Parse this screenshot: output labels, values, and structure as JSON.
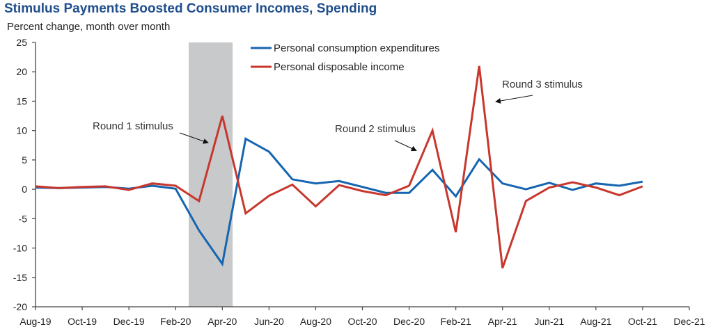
{
  "chart_data": {
    "type": "line",
    "title": "Stimulus Payments Boosted Consumer Incomes, Spending",
    "ylabel": "Percent change, month over month",
    "xlabel": "",
    "ylim": [
      -20,
      25
    ],
    "yticks": [
      25,
      20,
      15,
      10,
      5,
      0,
      -5,
      -10,
      -15,
      -20
    ],
    "xtick_labels": [
      "Aug-19",
      "Oct-19",
      "Dec-19",
      "Feb-20",
      "Apr-20",
      "Jun-20",
      "Aug-20",
      "Oct-20",
      "Dec-20",
      "Feb-21",
      "Apr-21",
      "Jun-21",
      "Aug-21",
      "Oct-21",
      "Dec-21"
    ],
    "x": [
      "Aug-19",
      "Sep-19",
      "Oct-19",
      "Nov-19",
      "Dec-19",
      "Jan-20",
      "Feb-20",
      "Mar-20",
      "Apr-20",
      "May-20",
      "Jun-20",
      "Jul-20",
      "Aug-20",
      "Sep-20",
      "Oct-20",
      "Nov-20",
      "Dec-20",
      "Jan-21",
      "Feb-21",
      "Mar-21",
      "Apr-21",
      "May-21",
      "Jun-21",
      "Jul-21",
      "Aug-21",
      "Sep-21",
      "Oct-21"
    ],
    "series": [
      {
        "name": "Personal consumption expenditures",
        "color": "#1565b0",
        "values": [
          0.3,
          0.2,
          0.3,
          0.4,
          0.1,
          0.6,
          0.1,
          -7.0,
          -12.7,
          8.6,
          6.4,
          1.7,
          1.0,
          1.4,
          0.4,
          -0.6,
          -0.6,
          3.3,
          -1.2,
          5.1,
          1.0,
          0.0,
          1.1,
          -0.1,
          1.0,
          0.6,
          1.3
        ]
      },
      {
        "name": "Personal disposable income",
        "color": "#c8372d",
        "values": [
          0.5,
          0.2,
          0.4,
          0.5,
          -0.1,
          1.0,
          0.6,
          -2.0,
          12.5,
          -4.1,
          -1.1,
          0.8,
          -2.9,
          0.7,
          -0.3,
          -1.0,
          0.6,
          10.0,
          -7.3,
          21.0,
          -13.4,
          -2.0,
          0.3,
          1.2,
          0.3,
          -1.0,
          0.5
        ]
      }
    ],
    "shaded_region": {
      "from": "Mar-20",
      "to": "Apr-20",
      "color": "#c8c9cb"
    },
    "legend_position": "top-center",
    "annotations": [
      {
        "text": "Round 1 stimulus",
        "points_to": "Apr-20"
      },
      {
        "text": "Round 2 stimulus",
        "points_to": "Jan-21"
      },
      {
        "text": "Round 3 stimulus",
        "points_to": "Mar-21"
      }
    ]
  }
}
